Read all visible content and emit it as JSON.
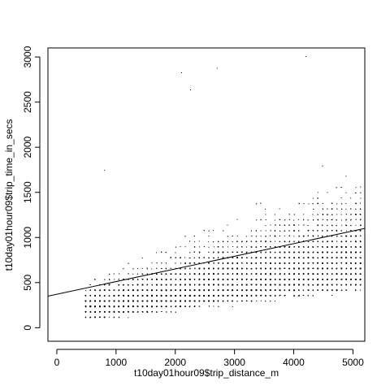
{
  "chart_data": {
    "type": "scatter",
    "title": "",
    "xlabel": "t10day01hour09$trip_distance_m",
    "ylabel": "t10day01hour09$trip_time_in_secs",
    "xlim": [
      -150,
      5200
    ],
    "ylim": [
      -150,
      3100
    ],
    "xticks": [
      0,
      1000,
      2000,
      3000,
      4000,
      5000
    ],
    "yticks": [
      0,
      500,
      1000,
      1500,
      2000,
      2500,
      3000
    ],
    "grid": false,
    "legend": "none",
    "point_color": "#000000",
    "series": [
      {
        "x_range": [
          450,
          5200
        ],
        "y_range": [
          60,
          3000
        ],
        "point_count_approx": 9000,
        "notable_points": [
          {
            "x": 2100,
            "y": 2830
          },
          {
            "x": 2250,
            "y": 2640
          },
          {
            "x": 2700,
            "y": 2880
          },
          {
            "x": 4200,
            "y": 3010
          },
          {
            "x": 800,
            "y": 1750
          }
        ]
      }
    ],
    "regression_line": {
      "x": [
        -150,
        5200
      ],
      "y": [
        350,
        1100
      ]
    }
  }
}
